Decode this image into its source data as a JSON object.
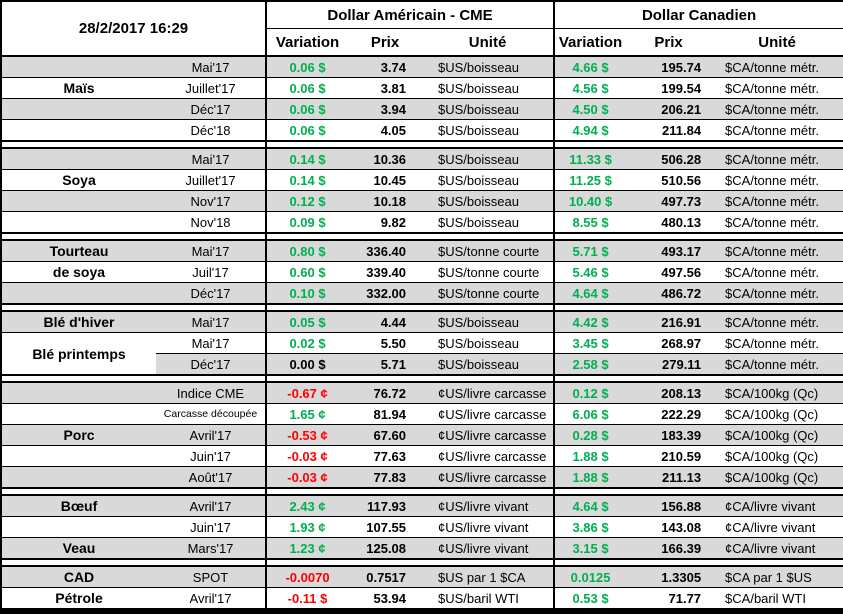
{
  "window": {
    "timestamp": "28/2/2017 16:29"
  },
  "header": {
    "us_panel_title": "Dollar Américain - CME",
    "cad_panel_title": "Dollar Canadien",
    "col_variation": "Variation",
    "col_price": "Prix",
    "col_unit": "Unité"
  },
  "colors": {
    "positive": "#00B050",
    "negative": "#FF0000",
    "zero": "#000000",
    "row_stripe": "#D9D9D9",
    "border": "#000000"
  },
  "groups": [
    {
      "rows": [
        {
          "label": "",
          "month": "Mai'17",
          "shaded": true,
          "us_variation": "0.06 $",
          "us_price": "3.74",
          "us_unit": "$US/boisseau",
          "cad_variation": "4.66 $",
          "cad_price": "195.74",
          "cad_unit": "$CA/tonne métr."
        },
        {
          "label": "Maïs",
          "month": "Juillet'17",
          "shaded": false,
          "us_variation": "0.06 $",
          "us_price": "3.81",
          "us_unit": "$US/boisseau",
          "cad_variation": "4.56 $",
          "cad_price": "199.54",
          "cad_unit": "$CA/tonne métr."
        },
        {
          "label": "",
          "month": "Déc'17",
          "shaded": true,
          "us_variation": "0.06 $",
          "us_price": "3.94",
          "us_unit": "$US/boisseau",
          "cad_variation": "4.50 $",
          "cad_price": "206.21",
          "cad_unit": "$CA/tonne métr."
        },
        {
          "label": "",
          "month": "Déc'18",
          "shaded": false,
          "us_variation": "0.06 $",
          "us_price": "4.05",
          "us_unit": "$US/boisseau",
          "cad_variation": "4.94 $",
          "cad_price": "211.84",
          "cad_unit": "$CA/tonne métr."
        }
      ]
    },
    {
      "rows": [
        {
          "label": "",
          "month": "Mai'17",
          "shaded": true,
          "us_variation": "0.14 $",
          "us_price": "10.36",
          "us_unit": "$US/boisseau",
          "cad_variation": "11.33 $",
          "cad_price": "506.28",
          "cad_unit": "$CA/tonne métr."
        },
        {
          "label": "Soya",
          "month": "Juillet'17",
          "shaded": false,
          "us_variation": "0.14 $",
          "us_price": "10.45",
          "us_unit": "$US/boisseau",
          "cad_variation": "11.25 $",
          "cad_price": "510.56",
          "cad_unit": "$CA/tonne métr."
        },
        {
          "label": "",
          "month": "Nov'17",
          "shaded": true,
          "us_variation": "0.12 $",
          "us_price": "10.18",
          "us_unit": "$US/boisseau",
          "cad_variation": "10.40 $",
          "cad_price": "497.73",
          "cad_unit": "$CA/tonne métr."
        },
        {
          "label": "",
          "month": "Nov'18",
          "shaded": false,
          "us_variation": "0.09 $",
          "us_price": "9.82",
          "us_unit": "$US/boisseau",
          "cad_variation": "8.55 $",
          "cad_price": "480.13",
          "cad_unit": "$CA/tonne métr."
        }
      ]
    },
    {
      "rows": [
        {
          "label": "Tourteau",
          "month": "Mai'17",
          "shaded": true,
          "us_variation": "0.80 $",
          "us_price": "336.40",
          "us_unit": "$US/tonne courte",
          "cad_variation": "5.71 $",
          "cad_price": "493.17",
          "cad_unit": "$CA/tonne métr."
        },
        {
          "label": "de soya",
          "month": "Juil'17",
          "shaded": false,
          "us_variation": "0.60 $",
          "us_price": "339.40",
          "us_unit": "$US/tonne courte",
          "cad_variation": "5.46 $",
          "cad_price": "497.56",
          "cad_unit": "$CA/tonne métr."
        },
        {
          "label": "",
          "month": "Déc'17",
          "shaded": true,
          "us_variation": "0.10 $",
          "us_price": "332.00",
          "us_unit": "$US/tonne courte",
          "cad_variation": "4.64 $",
          "cad_price": "486.72",
          "cad_unit": "$CA/tonne métr."
        }
      ]
    },
    {
      "rows": [
        {
          "label": "Blé d'hiver",
          "month": "Mai'17",
          "shaded": true,
          "us_variation": "0.05 $",
          "us_price": "4.44",
          "us_unit": "$US/boisseau",
          "cad_variation": "4.42 $",
          "cad_price": "216.91",
          "cad_unit": "$CA/tonne métr."
        },
        {
          "label": "Blé printemps",
          "label_rowspan": 2,
          "month": "Mai'17",
          "shaded": false,
          "us_variation": "0.02 $",
          "us_price": "5.50",
          "us_unit": "$US/boisseau",
          "cad_variation": "3.45 $",
          "cad_price": "268.97",
          "cad_unit": "$CA/tonne métr."
        },
        {
          "label": null,
          "month": "Déc'17",
          "shaded": true,
          "us_variation": "0.00 $",
          "us_price": "5.71",
          "us_unit": "$US/boisseau",
          "cad_variation": "2.58 $",
          "cad_price": "279.11",
          "cad_unit": "$CA/tonne métr."
        }
      ]
    },
    {
      "rows": [
        {
          "label": "",
          "month": "Indice CME",
          "shaded": true,
          "us_variation": "-0.67 ¢",
          "us_price": "76.72",
          "us_unit": "¢US/livre carcasse",
          "cad_variation": "0.12 $",
          "cad_price": "208.13",
          "cad_unit": "$CA/100kg (Qc)"
        },
        {
          "label": "",
          "month": "Carcasse découpée",
          "month_small": true,
          "shaded": false,
          "us_variation": "1.65 ¢",
          "us_price": "81.94",
          "us_unit": "¢US/livre carcasse",
          "cad_variation": "6.06 $",
          "cad_price": "222.29",
          "cad_unit": "$CA/100kg (Qc)"
        },
        {
          "label": "Porc",
          "month": "Avril'17",
          "shaded": true,
          "us_variation": "-0.53 ¢",
          "us_price": "67.60",
          "us_unit": "¢US/livre carcasse",
          "cad_variation": "0.28 $",
          "cad_price": "183.39",
          "cad_unit": "$CA/100kg (Qc)"
        },
        {
          "label": "",
          "month": "Juin'17",
          "shaded": false,
          "us_variation": "-0.03 ¢",
          "us_price": "77.63",
          "us_unit": "¢US/livre carcasse",
          "cad_variation": "1.88 $",
          "cad_price": "210.59",
          "cad_unit": "$CA/100kg (Qc)"
        },
        {
          "label": "",
          "month": "Août'17",
          "shaded": true,
          "us_variation": "-0.03 ¢",
          "us_price": "77.83",
          "us_unit": "¢US/livre carcasse",
          "cad_variation": "1.88 $",
          "cad_price": "211.13",
          "cad_unit": "$CA/100kg (Qc)"
        }
      ]
    },
    {
      "rows": [
        {
          "label": "Bœuf",
          "month": "Avril'17",
          "shaded": true,
          "us_variation": "2.43 ¢",
          "us_price": "117.93",
          "us_unit": "¢US/livre vivant",
          "cad_variation": "4.64 $",
          "cad_price": "156.88",
          "cad_unit": "¢CA/livre vivant"
        },
        {
          "label": "",
          "month": "Juin'17",
          "shaded": false,
          "us_variation": "1.93 ¢",
          "us_price": "107.55",
          "us_unit": "¢US/livre vivant",
          "cad_variation": "3.86 $",
          "cad_price": "143.08",
          "cad_unit": "¢CA/livre vivant"
        },
        {
          "label": "Veau",
          "month": "Mars'17",
          "shaded": true,
          "us_variation": "1.23 ¢",
          "us_price": "125.08",
          "us_unit": "¢US/livre vivant",
          "cad_variation": "3.15 $",
          "cad_price": "166.39",
          "cad_unit": "¢CA/livre vivant"
        }
      ]
    },
    {
      "rows": [
        {
          "label": "CAD",
          "month": "SPOT",
          "shaded": true,
          "us_variation": "-0.0070",
          "us_price": "0.7517",
          "us_unit": "$US par 1 $CA",
          "cad_variation": "0.0125",
          "cad_price": "1.3305",
          "cad_unit": "$CA par 1 $US"
        },
        {
          "label": "Pétrole",
          "month": "Avril'17",
          "shaded": false,
          "us_variation": "-0.11 $",
          "us_price": "53.94",
          "us_unit": "$US/baril WTI",
          "cad_variation": "0.53 $",
          "cad_price": "71.77",
          "cad_unit": "$CA/baril WTI"
        }
      ]
    }
  ]
}
